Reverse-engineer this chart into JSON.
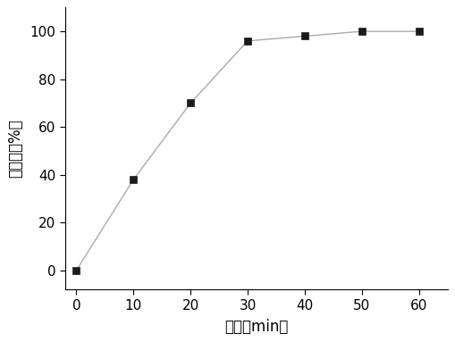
{
  "x": [
    0,
    10,
    20,
    30,
    40,
    50,
    60
  ],
  "y": [
    0,
    38,
    70,
    96,
    98,
    100,
    100
  ],
  "xlabel": "时间（min）",
  "ylabel": "降解率（%）",
  "xlim": [
    -2,
    65
  ],
  "ylim": [
    -8,
    110
  ],
  "xticks": [
    0,
    10,
    20,
    30,
    40,
    50,
    60
  ],
  "yticks": [
    0,
    20,
    40,
    60,
    80,
    100
  ],
  "marker": "s",
  "marker_color": "#1a1a1a",
  "line_color": "#aaaaaa",
  "marker_size": 6,
  "line_width": 1.0,
  "background_color": "#ffffff",
  "tick_label_fontsize": 11,
  "axis_label_fontsize": 12
}
